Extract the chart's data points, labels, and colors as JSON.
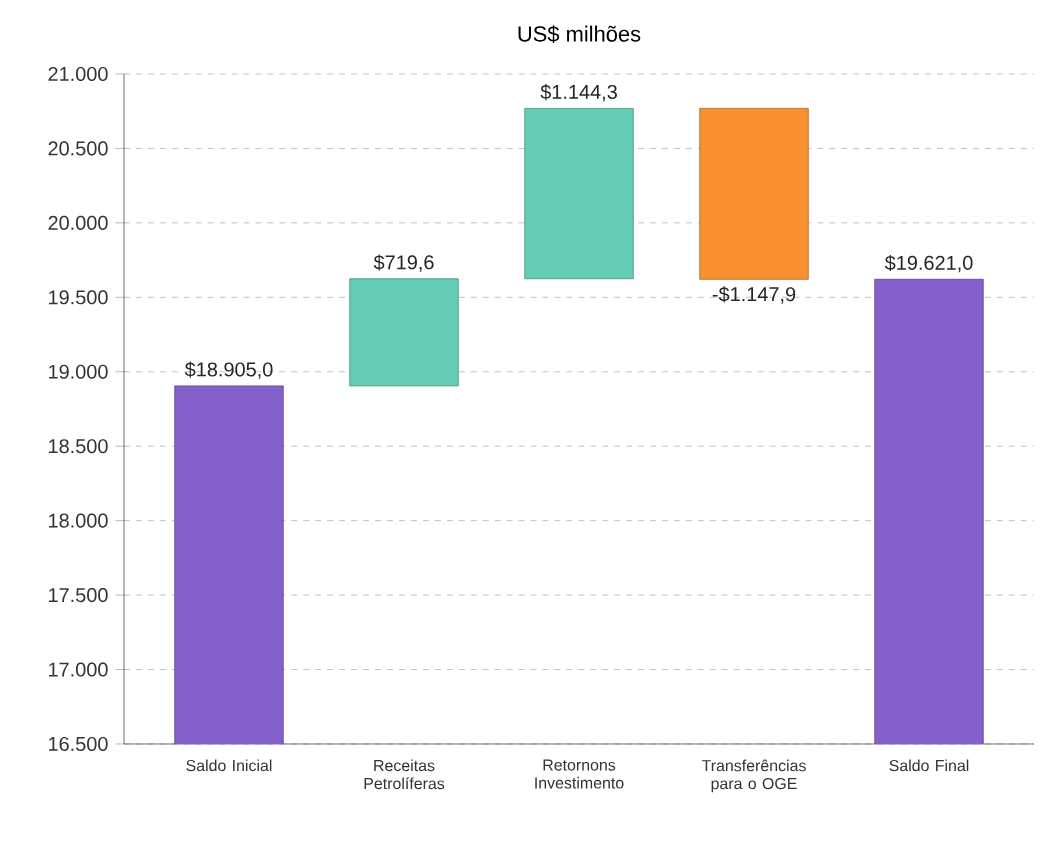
{
  "chart_data": {
    "type": "bar",
    "title": "US$ milhões",
    "categories": [
      "Saldo Inicial",
      "Receitas Petrolíferas",
      "Retornons Investimento",
      "Transferências para o OGE",
      "Saldo Final"
    ],
    "values": [
      18905.0,
      719.6,
      1144.3,
      -1147.9,
      19621.0
    ],
    "base": [
      null,
      18905.0,
      19624.6,
      20768.9,
      null
    ],
    "colors": [
      "#8460cc",
      "#66cdb5",
      "#66cdb5",
      "#f79130",
      "#8460cc"
    ],
    "value_labels": [
      "$18.905,0",
      "$719,6",
      "$1.144,3",
      "-$1.147,9",
      "$19.621,0"
    ],
    "ylim": [
      16500,
      21000
    ],
    "yticks": [
      {
        "value": 16500,
        "label": "16.500"
      },
      {
        "value": 17000,
        "label": "17.000"
      },
      {
        "value": 17500,
        "label": "17.500"
      },
      {
        "value": 18000,
        "label": "18.000"
      },
      {
        "value": 18500,
        "label": "18.500"
      },
      {
        "value": 19000,
        "label": "19.000"
      },
      {
        "value": 19500,
        "label": "19.500"
      },
      {
        "value": 20000,
        "label": "20.000"
      },
      {
        "value": 20500,
        "label": "20.500"
      },
      {
        "value": 21000,
        "label": "21.000"
      }
    ],
    "grid": "y"
  }
}
